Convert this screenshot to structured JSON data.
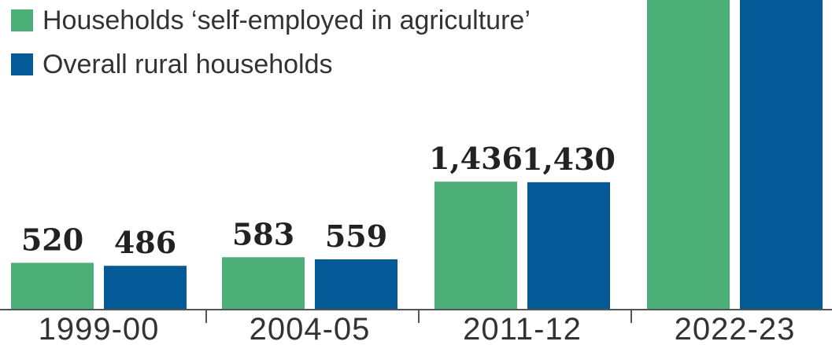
{
  "colors": {
    "agriculture": "#4daf78",
    "rural": "#045a96",
    "axis": "#555555"
  },
  "chart_data": {
    "type": "bar",
    "categories": [
      "1999-00",
      "2004-05",
      "2011-12",
      "2022-23"
    ],
    "series": [
      {
        "name": "Households ‘self-employed in agriculture’",
        "values": [
          520,
          583,
          1436,
          null
        ],
        "labels": [
          "520",
          "583",
          "1,436",
          ""
        ]
      },
      {
        "name": "Overall rural households",
        "values": [
          486,
          559,
          1430,
          null
        ],
        "labels": [
          "486",
          "559",
          "1,430",
          ""
        ]
      }
    ],
    "legend_placement": "top-left",
    "grid": false
  }
}
